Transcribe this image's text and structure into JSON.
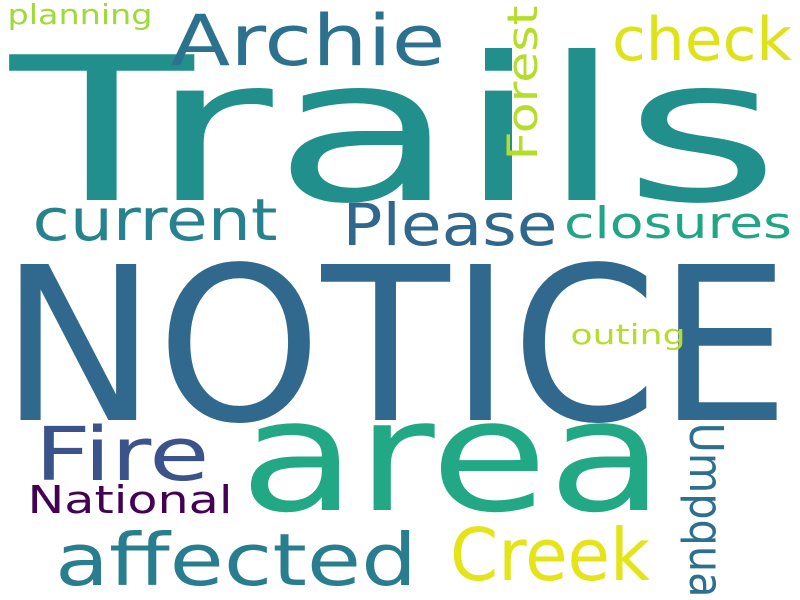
{
  "words": [
    {
      "text": "NOTICE",
      "color": "#31688e"
    },
    {
      "text": "Trails",
      "color": "#21908d"
    },
    {
      "text": "area",
      "color": "#22a884"
    },
    {
      "text": "Archie",
      "color": "#2c728e"
    },
    {
      "text": "check",
      "color": "#dde318"
    },
    {
      "text": "Forest",
      "color": "#b5de2b"
    },
    {
      "text": "Please",
      "color": "#30678d"
    },
    {
      "text": "current",
      "color": "#26828e"
    },
    {
      "text": "closures",
      "color": "#21a685"
    },
    {
      "text": "outing",
      "color": "#b5de2b"
    },
    {
      "text": "Fire",
      "color": "#3b528b"
    },
    {
      "text": "Umpqua",
      "color": "#2d6f8e"
    },
    {
      "text": "National",
      "color": "#440154"
    },
    {
      "text": "affected",
      "color": "#287d8e"
    },
    {
      "text": "Creek",
      "color": "#e5e419"
    },
    {
      "text": "planning",
      "color": "#a0da39"
    }
  ]
}
